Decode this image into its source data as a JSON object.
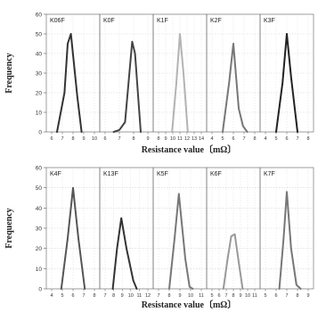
{
  "chart_data": {
    "type": "line",
    "rows": [
      {
        "xlabel": "Resistance value〔mΩ〕",
        "ylabel": "Frequency",
        "ylim": [
          0,
          60
        ],
        "yticks": [
          "0",
          "10",
          "20",
          "30",
          "40",
          "50",
          "60"
        ],
        "grid": true,
        "panels": [
          {
            "label": "K06F",
            "xlim": [
              6,
              10
            ],
            "xticks": [
              "6",
              "7",
              "8",
              "9",
              "10"
            ],
            "series": [
              {
                "color": "#333333",
                "x": [
                  6.5,
                  7.2,
                  7.5,
                  7.8,
                  8.4,
                  8.8
                ],
                "y": [
                  0,
                  20,
                  45,
                  50,
                  18,
                  0
                ]
              }
            ]
          },
          {
            "label": "K0F",
            "xlim": [
              6,
              9
            ],
            "xticks": [
              "6",
              "7",
              "8",
              "9"
            ],
            "series": [
              {
                "color": "#444444",
                "x": [
                  6.6,
                  7.0,
                  7.4,
                  7.9,
                  8.1,
                  8.5
                ],
                "y": [
                  0,
                  1,
                  5,
                  46,
                  40,
                  0
                ]
              }
            ]
          },
          {
            "label": "K1F",
            "xlim": [
              8,
              14
            ],
            "xticks": [
              "8",
              "9",
              "10",
              "11",
              "12",
              "13",
              "14"
            ],
            "series": [
              {
                "color": "#b3b3b3",
                "x": [
                  9.9,
                  10.5,
                  11.0,
                  11.5,
                  12.1
                ],
                "y": [
                  0,
                  25,
                  50,
                  30,
                  0
                ]
              }
            ]
          },
          {
            "label": "K2F",
            "xlim": [
              4,
              8
            ],
            "xticks": [
              "4",
              "5",
              "6",
              "7",
              "8"
            ],
            "series": [
              {
                "color": "#777777",
                "x": [
                  5.0,
                  5.6,
                  6.0,
                  6.5,
                  6.9,
                  7.3
                ],
                "y": [
                  0,
                  25,
                  45,
                  12,
                  3,
                  0
                ]
              }
            ]
          },
          {
            "label": "K3F",
            "xlim": [
              4,
              8
            ],
            "xticks": [
              "4",
              "5",
              "6",
              "7",
              "8"
            ],
            "series": [
              {
                "color": "#222222",
                "x": [
                  5.0,
                  5.6,
                  6.0,
                  6.4,
                  7.0
                ],
                "y": [
                  0,
                  25,
                  50,
                  28,
                  0
                ]
              }
            ]
          }
        ]
      },
      {
        "xlabel": "Resistance value〔mΩ〕",
        "ylabel": "Frequency",
        "ylim": [
          0,
          60
        ],
        "yticks": [
          "0",
          "10",
          "20",
          "30",
          "40",
          "50",
          "60"
        ],
        "grid": true,
        "panels": [
          {
            "label": "K4F",
            "xlim": [
              4,
              8
            ],
            "xticks": [
              "4",
              "5",
              "6",
              "7",
              "8"
            ],
            "series": [
              {
                "color": "#555555",
                "x": [
                  4.9,
                  5.5,
                  6.0,
                  6.5,
                  7.1
                ],
                "y": [
                  0,
                  25,
                  50,
                  25,
                  0
                ]
              }
            ]
          },
          {
            "label": "K13F",
            "xlim": [
              7,
              12
            ],
            "xticks": [
              "7",
              "8",
              "9",
              "10",
              "11",
              "12"
            ],
            "series": [
              {
                "color": "#333333",
                "x": [
                  7.9,
                  8.4,
                  8.9,
                  9.5,
                  10.3,
                  10.7
                ],
                "y": [
                  0,
                  20,
                  35,
                  20,
                  4,
                  0
                ]
              }
            ]
          },
          {
            "label": "K5F",
            "xlim": [
              7,
              11
            ],
            "xticks": [
              "7",
              "8",
              "9",
              "10",
              "11"
            ],
            "series": [
              {
                "color": "#777777",
                "x": [
                  8.0,
                  8.5,
                  8.9,
                  9.5,
                  9.9,
                  10.2
                ],
                "y": [
                  0,
                  25,
                  47,
                  15,
                  1,
                  0
                ]
              }
            ]
          },
          {
            "label": "K6F",
            "xlim": [
              5,
              11
            ],
            "xticks": [
              "5",
              "6",
              "7",
              "8",
              "9",
              "10",
              "11"
            ],
            "series": [
              {
                "color": "#999999",
                "x": [
                  6.6,
                  7.2,
                  7.7,
                  8.2,
                  8.8,
                  9.3
                ],
                "y": [
                  0,
                  15,
                  26,
                  27,
                  12,
                  0
                ]
              }
            ]
          },
          {
            "label": "K7F",
            "xlim": [
              5,
              9
            ],
            "xticks": [
              "5",
              "6",
              "7",
              "8",
              "9"
            ],
            "series": [
              {
                "color": "#777777",
                "x": [
                  6.3,
                  6.7,
                  7.0,
                  7.4,
                  7.9,
                  8.3
                ],
                "y": [
                  0,
                  25,
                  48,
                  20,
                  2,
                  0
                ]
              }
            ]
          }
        ]
      }
    ]
  }
}
